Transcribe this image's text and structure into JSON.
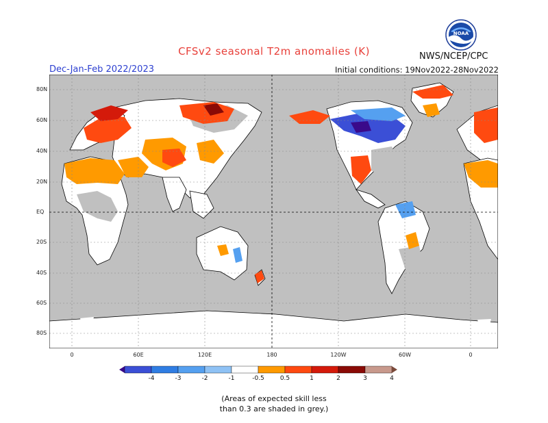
{
  "header": {
    "title": "CFSv2 seasonal T2m anomalies (K)",
    "agency": "NWS/NCEP/CPC",
    "logo_text": "NOAA",
    "period": "Dec-Jan-Feb 2022/2023",
    "initial_conditions": "Initial conditions: 19Nov2022-28Nov2022"
  },
  "map": {
    "lat_labels": [
      "80N",
      "60N",
      "40N",
      "20N",
      "EQ",
      "20S",
      "40S",
      "60S",
      "80S"
    ],
    "lon_labels": [
      "0",
      "60E",
      "120E",
      "180",
      "120W",
      "60W",
      "0"
    ],
    "colors": {
      "ocean": "#c0c0c0",
      "land_low_skill": "#c0c0c0",
      "neutral_land": "#ffffff",
      "coast": "#000000"
    }
  },
  "colorbar": {
    "labels": [
      "-4",
      "-3",
      "-2",
      "-1",
      "-0.5",
      "0.5",
      "1",
      "2",
      "3",
      "4"
    ],
    "colors": [
      "#3a0a8a",
      "#3b4fd6",
      "#2f7de3",
      "#55a0f0",
      "#8fc2f5",
      "#ffffff",
      "#ff9a00",
      "#ff4a10",
      "#d41a0a",
      "#8a0a06",
      "#c8998c",
      "#7a4a3a"
    ]
  },
  "footnote": {
    "line1": "(Areas of expected skill less",
    "line2": "than 0.3 are shaded in grey.)"
  }
}
